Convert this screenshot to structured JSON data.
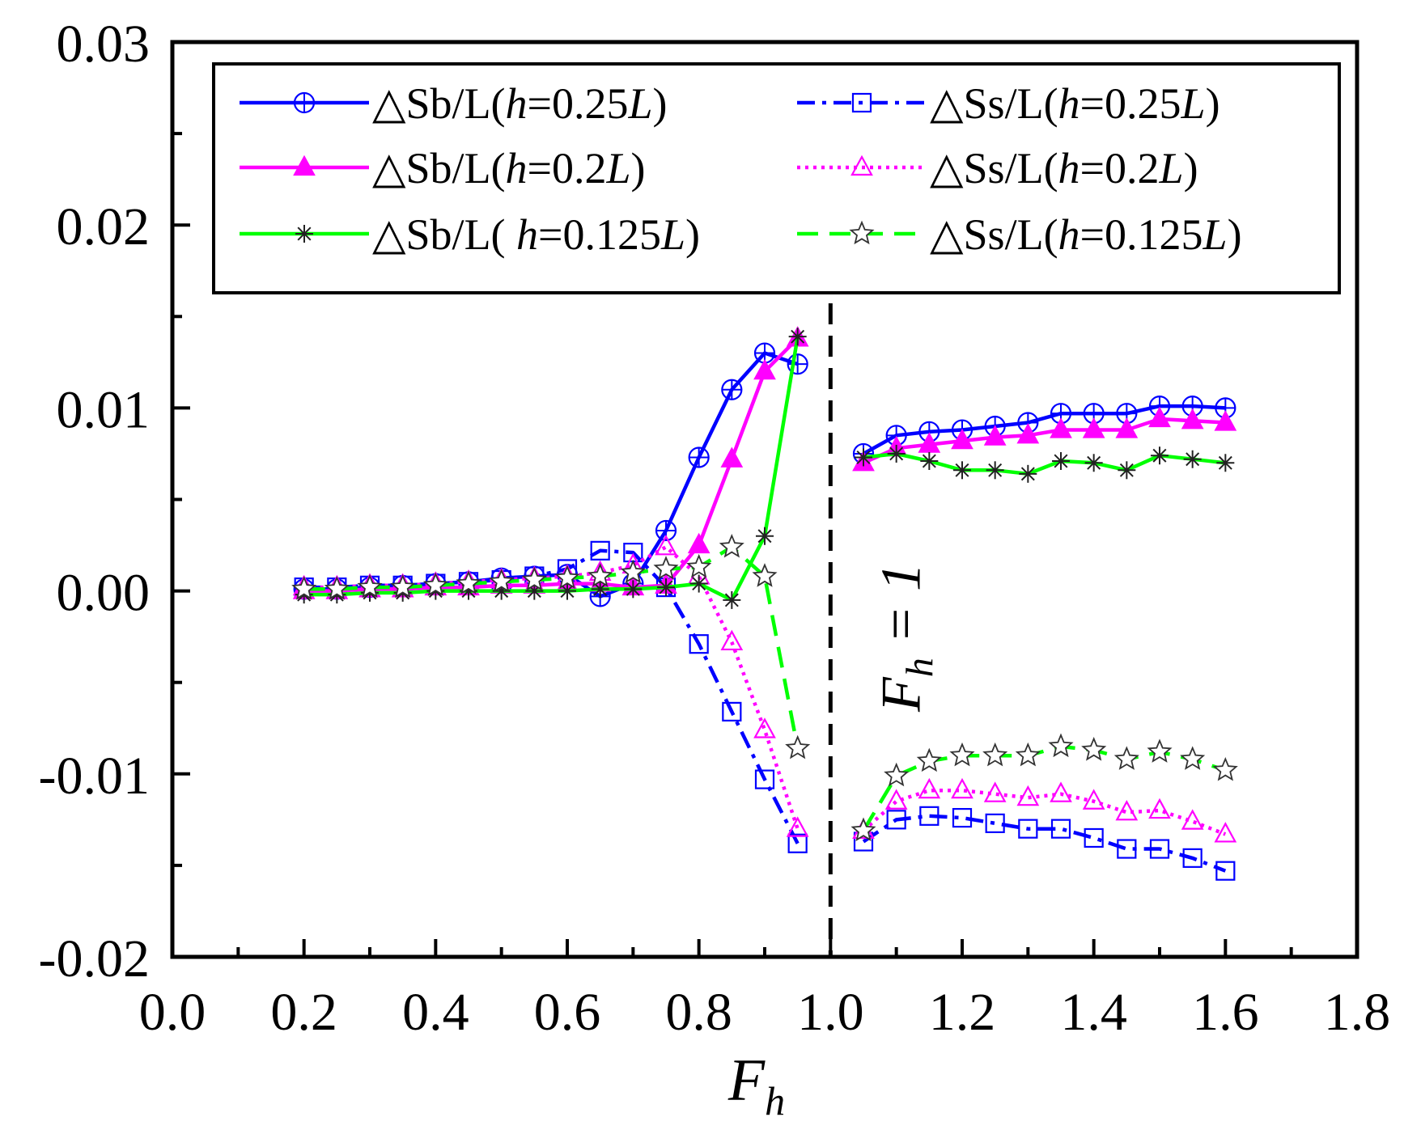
{
  "chart_data": {
    "type": "line",
    "title": "",
    "xlabel": "F_h",
    "xlabel_main": "F",
    "xlabel_sub": "h",
    "ylabel": "",
    "xlim": [
      0.0,
      1.8
    ],
    "ylim": [
      -0.02,
      0.03
    ],
    "x_ticks": [
      "0.0",
      "0.2",
      "0.4",
      "0.6",
      "0.8",
      "1.0",
      "1.2",
      "1.4",
      "1.6",
      "1.8"
    ],
    "y_ticks": [
      "-0.02",
      "-0.01",
      "0.00",
      "0.01",
      "0.02",
      "0.03"
    ],
    "grid": false,
    "legend_position": "top",
    "annotation": {
      "text": "F_h = 1",
      "main": "F",
      "sub": "h",
      "rest": " = 1",
      "x": 1.0,
      "style": "dashed vertical line"
    },
    "series": [
      {
        "name": "△Sb/L(h=0.25L)",
        "legend_parts": [
          "△Sb/L(",
          "h",
          "=0.25",
          "L",
          ")"
        ],
        "color": "#0000ff",
        "line": "solid",
        "marker": "circle-plus",
        "marker_fill": "none",
        "segments": [
          {
            "x": [
              0.2,
              0.25,
              0.3,
              0.35,
              0.4,
              0.45,
              0.5,
              0.55,
              0.6,
              0.65,
              0.7,
              0.75,
              0.8,
              0.85,
              0.9,
              0.95
            ],
            "y": [
              0.0001,
              0.0001,
              0.0002,
              0.0003,
              0.0004,
              0.0005,
              0.0007,
              0.0008,
              0.0009,
              -0.0003,
              0.0004,
              0.0033,
              0.0073,
              0.011,
              0.013,
              0.0124
            ]
          },
          {
            "x": [
              1.05,
              1.1,
              1.15,
              1.2,
              1.25,
              1.3,
              1.35,
              1.4,
              1.45,
              1.5,
              1.55,
              1.6
            ],
            "y": [
              0.0075,
              0.0085,
              0.0087,
              0.0088,
              0.009,
              0.0092,
              0.0097,
              0.0097,
              0.0097,
              0.0101,
              0.0101,
              0.01
            ]
          }
        ]
      },
      {
        "name": "△Ss/L(h=0.25L)",
        "legend_parts": [
          "△Ss/L(",
          "h",
          "=0.25",
          "L",
          ")"
        ],
        "color": "#0000ff",
        "line": "dashdot",
        "marker": "square",
        "marker_fill": "none",
        "segments": [
          {
            "x": [
              0.2,
              0.25,
              0.3,
              0.35,
              0.4,
              0.45,
              0.5,
              0.55,
              0.6,
              0.65,
              0.7,
              0.75,
              0.8,
              0.85,
              0.9,
              0.95
            ],
            "y": [
              0.0002,
              0.0002,
              0.0003,
              0.0003,
              0.0004,
              0.0005,
              0.0006,
              0.0008,
              0.0012,
              0.0022,
              0.0021,
              0.0002,
              -0.0029,
              -0.0066,
              -0.0103,
              -0.0138
            ]
          },
          {
            "x": [
              1.05,
              1.1,
              1.15,
              1.2,
              1.25,
              1.3,
              1.35,
              1.4,
              1.45,
              1.5,
              1.55,
              1.6
            ],
            "y": [
              -0.0137,
              -0.0125,
              -0.0123,
              -0.0124,
              -0.0127,
              -0.013,
              -0.013,
              -0.0135,
              -0.0141,
              -0.0141,
              -0.0146,
              -0.0153
            ]
          }
        ]
      },
      {
        "name": "△Sb/L(h=0.2L)",
        "legend_parts": [
          "△Sb/L(",
          "h",
          "=0.2",
          "L",
          ")"
        ],
        "color": "#ff00ff",
        "line": "solid",
        "marker": "triangle",
        "marker_fill": "#ff00ff",
        "segments": [
          {
            "x": [
              0.2,
              0.25,
              0.3,
              0.35,
              0.4,
              0.45,
              0.5,
              0.55,
              0.6,
              0.65,
              0.7,
              0.75,
              0.8,
              0.85,
              0.9,
              0.95
            ],
            "y": [
              0.0,
              0.0,
              0.0001,
              0.0001,
              0.0002,
              0.0002,
              0.0003,
              0.0003,
              0.0004,
              0.0004,
              0.0002,
              0.0003,
              0.0025,
              0.0072,
              0.012,
              0.0138
            ]
          },
          {
            "x": [
              1.05,
              1.1,
              1.15,
              1.2,
              1.25,
              1.3,
              1.35,
              1.4,
              1.45,
              1.5,
              1.55,
              1.6
            ],
            "y": [
              0.007,
              0.0078,
              0.008,
              0.0082,
              0.0084,
              0.0085,
              0.0088,
              0.0088,
              0.0088,
              0.0094,
              0.0093,
              0.0092
            ]
          }
        ]
      },
      {
        "name": "△Ss/L(h=0.2L)",
        "legend_parts": [
          "△Ss/L(",
          "h",
          "=0.2",
          "L",
          ")"
        ],
        "color": "#ff00ff",
        "line": "dotted",
        "marker": "triangle",
        "marker_fill": "none",
        "segments": [
          {
            "x": [
              0.2,
              0.25,
              0.3,
              0.35,
              0.4,
              0.45,
              0.5,
              0.55,
              0.6,
              0.65,
              0.7,
              0.75,
              0.8,
              0.85,
              0.9,
              0.95
            ],
            "y": [
              0.0002,
              0.0002,
              0.0003,
              0.0003,
              0.0004,
              0.0005,
              0.0006,
              0.0007,
              0.0008,
              0.001,
              0.0014,
              0.0024,
              0.0008,
              -0.0028,
              -0.0076,
              -0.013
            ]
          },
          {
            "x": [
              1.05,
              1.1,
              1.15,
              1.2,
              1.25,
              1.3,
              1.35,
              1.4,
              1.45,
              1.5,
              1.55,
              1.6
            ],
            "y": [
              -0.0131,
              -0.0115,
              -0.0109,
              -0.0109,
              -0.0111,
              -0.0113,
              -0.0111,
              -0.0115,
              -0.0121,
              -0.012,
              -0.0126,
              -0.0133
            ]
          }
        ]
      },
      {
        "name": "△Sb/L( h=0.125L)",
        "legend_parts": [
          "△Sb/L( ",
          "h",
          "=0.125",
          "L",
          ")"
        ],
        "color": "#00ff00",
        "line": "solid",
        "marker": "asterisk",
        "marker_fill": "none",
        "segments": [
          {
            "x": [
              0.2,
              0.25,
              0.3,
              0.35,
              0.4,
              0.45,
              0.5,
              0.55,
              0.6,
              0.65,
              0.7,
              0.75,
              0.8,
              0.85,
              0.9,
              0.95
            ],
            "y": [
              -0.0002,
              -0.0002,
              -0.0001,
              -0.0001,
              0.0,
              0.0,
              0.0,
              0.0,
              0.0,
              0.0001,
              0.0001,
              0.0002,
              0.0004,
              -0.0005,
              0.003,
              0.0139
            ]
          },
          {
            "x": [
              1.05,
              1.1,
              1.15,
              1.2,
              1.25,
              1.3,
              1.35,
              1.4,
              1.45,
              1.5,
              1.55,
              1.6
            ],
            "y": [
              0.0073,
              0.0075,
              0.0071,
              0.0066,
              0.0066,
              0.0064,
              0.0071,
              0.007,
              0.0066,
              0.0074,
              0.0072,
              0.007
            ]
          }
        ]
      },
      {
        "name": "△Ss/L(h=0.125L)",
        "legend_parts": [
          "△Ss/L(",
          "h",
          "=0.125",
          "L",
          ")"
        ],
        "color": "#00ff00",
        "line": "dashed",
        "marker": "star",
        "marker_fill": "#ffffff",
        "segments": [
          {
            "x": [
              0.2,
              0.25,
              0.3,
              0.35,
              0.4,
              0.45,
              0.5,
              0.55,
              0.6,
              0.65,
              0.7,
              0.75,
              0.8,
              0.85,
              0.9,
              0.95
            ],
            "y": [
              0.0001,
              0.0001,
              0.0002,
              0.0002,
              0.0003,
              0.0004,
              0.0005,
              0.0006,
              0.0007,
              0.0008,
              0.001,
              0.0012,
              0.0013,
              0.0024,
              0.0008,
              -0.0086
            ]
          },
          {
            "x": [
              1.05,
              1.1,
              1.15,
              1.2,
              1.25,
              1.3,
              1.35,
              1.4,
              1.45,
              1.5,
              1.55,
              1.6
            ],
            "y": [
              -0.0131,
              -0.0101,
              -0.0093,
              -0.009,
              -0.009,
              -0.009,
              -0.0085,
              -0.0087,
              -0.0092,
              -0.0088,
              -0.0092,
              -0.0098
            ]
          }
        ]
      }
    ]
  }
}
